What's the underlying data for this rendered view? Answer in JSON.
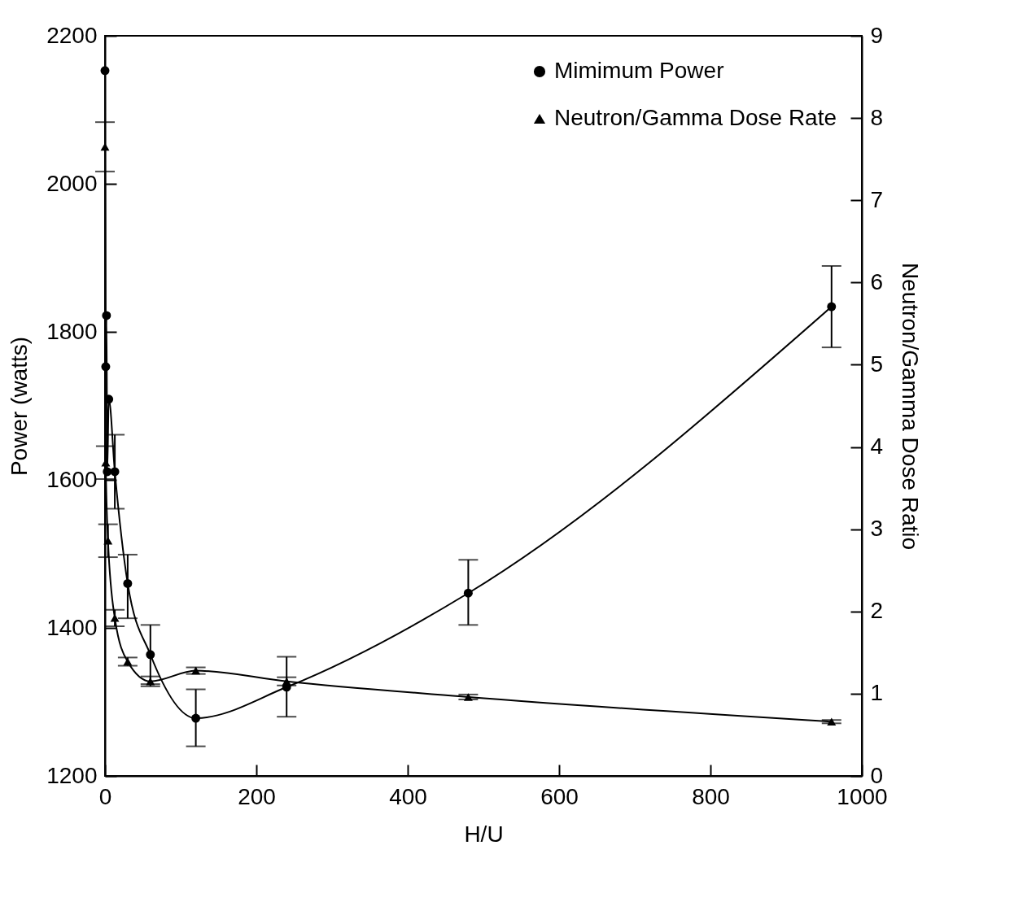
{
  "chart_data": {
    "type": "line",
    "xlabel": "H/U",
    "ylabel": "Power  (watts)",
    "y2label": "Neutron/Gamma Dose Ratio",
    "xlim": [
      0,
      1000
    ],
    "xticks": [
      0,
      200,
      400,
      600,
      800,
      1000
    ],
    "ylim": [
      1200,
      2200
    ],
    "yticks": [
      1200,
      1400,
      1600,
      1800,
      2000,
      2200
    ],
    "y2lim": [
      0,
      9
    ],
    "y2ticks": [
      0,
      1,
      2,
      3,
      4,
      5,
      6,
      7,
      8,
      9
    ],
    "grid": false,
    "legend": "top right",
    "series": [
      {
        "name": "Mimimum Power",
        "color": "#000000",
        "marker": "circle",
        "x": [
          0,
          1,
          2,
          3,
          5,
          13,
          30,
          60,
          120,
          240,
          480,
          960
        ],
        "values": [
          2153,
          1753,
          1822,
          1611,
          1709,
          1611,
          1460,
          1364,
          1278,
          1320,
          1447,
          1834
        ],
        "errors": [
          null,
          null,
          null,
          null,
          null,
          50,
          [
            1413,
            1499
          ],
          40,
          [
            1240,
            1317
          ],
          [
            1280,
            1361
          ],
          [
            1404,
            1492
          ],
          [
            1779,
            1889
          ]
        ]
      },
      {
        "name": "Neutron/Gamma Dose Rate",
        "color": "#000000",
        "marker": "triangle",
        "axis": "y2",
        "x": [
          0,
          1,
          4,
          13,
          30,
          60,
          120,
          240,
          480,
          960
        ],
        "values": [
          7.65,
          3.81,
          2.86,
          1.92,
          1.39,
          1.15,
          1.28,
          1.15,
          0.96,
          0.66
        ],
        "errors": [
          0.3,
          0.2,
          0.2,
          0.1,
          0.05,
          0.06,
          0.04,
          0.05,
          0.03,
          0.02
        ]
      }
    ]
  }
}
